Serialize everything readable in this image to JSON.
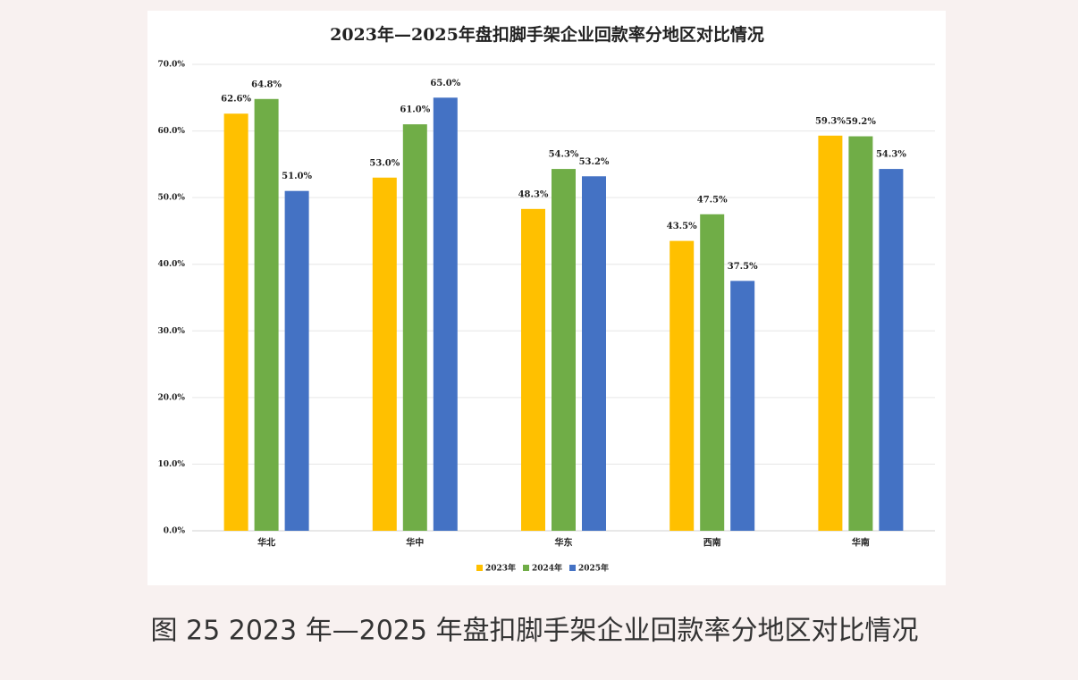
{
  "chart_data": {
    "type": "bar",
    "title": "2023年—2025年盘扣脚手架企业回款率分地区对比情况",
    "categories": [
      "华北",
      "华中",
      "华东",
      "西南",
      "华南"
    ],
    "series": [
      {
        "name": "2023年",
        "color": "#ffc000",
        "values": [
          62.6,
          53.0,
          48.3,
          43.5,
          59.3
        ],
        "value_labels": [
          "62.6%",
          "53.0%",
          "48.3%",
          "43.5%",
          "59.3%"
        ]
      },
      {
        "name": "2024年",
        "color": "#70ad47",
        "values": [
          64.8,
          61.0,
          54.3,
          47.5,
          59.2
        ],
        "value_labels": [
          "64.8%",
          "61.0%",
          "54.3%",
          "47.5%",
          "59.2%"
        ]
      },
      {
        "name": "2025年",
        "color": "#4472c4",
        "values": [
          51.0,
          65.0,
          53.2,
          37.5,
          54.3
        ],
        "value_labels": [
          "51.0%",
          "65.0%",
          "53.2%",
          "37.5%",
          "54.3%"
        ]
      }
    ],
    "ylim": [
      0,
      70
    ],
    "yticks": [
      {
        "value": 0,
        "label": "0.0%"
      },
      {
        "value": 10,
        "label": "10.0%"
      },
      {
        "value": 20,
        "label": "20.0%"
      },
      {
        "value": 30,
        "label": "30.0%"
      },
      {
        "value": 40,
        "label": "40.0%"
      },
      {
        "value": 50,
        "label": "50.0%"
      },
      {
        "value": 60,
        "label": "60.0%"
      },
      {
        "value": 70,
        "label": "70.0%"
      }
    ],
    "grid": true,
    "legend": "bottom"
  },
  "caption": "图 25 2023 年—2025 年盘扣脚手架企业回款率分地区对比情况"
}
